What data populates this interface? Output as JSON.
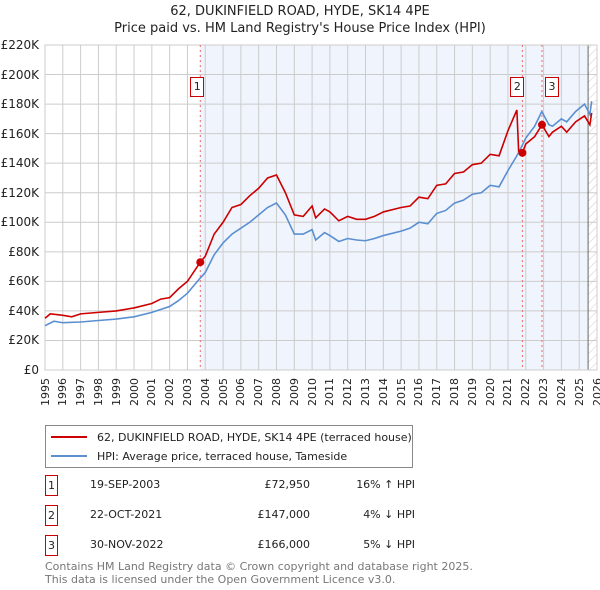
{
  "chart_data": {
    "type": "line",
    "title": "62, DUKINFIELD ROAD, HYDE, SK14 4PE",
    "subtitle": "Price paid vs. HM Land Registry's House Price Index (HPI)",
    "xlim": [
      1995,
      2026
    ],
    "ylim": [
      0,
      220000
    ],
    "x_ticks": [
      "1995",
      "1996",
      "1997",
      "1998",
      "1999",
      "2000",
      "2001",
      "2002",
      "2003",
      "2004",
      "2005",
      "2006",
      "2007",
      "2008",
      "2009",
      "2010",
      "2011",
      "2012",
      "2013",
      "2014",
      "2015",
      "2016",
      "2017",
      "2018",
      "2019",
      "2020",
      "2021",
      "2022",
      "2023",
      "2024",
      "2025",
      "2026"
    ],
    "y_ticks": [
      {
        "v": 0,
        "label": "£0"
      },
      {
        "v": 20000,
        "label": "£20K"
      },
      {
        "v": 40000,
        "label": "£40K"
      },
      {
        "v": 60000,
        "label": "£60K"
      },
      {
        "v": 80000,
        "label": "£80K"
      },
      {
        "v": 100000,
        "label": "£100K"
      },
      {
        "v": 120000,
        "label": "£120K"
      },
      {
        "v": 140000,
        "label": "£140K"
      },
      {
        "v": 160000,
        "label": "£160K"
      },
      {
        "v": 180000,
        "label": "£180K"
      },
      {
        "v": 200000,
        "label": "£200K"
      },
      {
        "v": 220000,
        "label": "£220K"
      }
    ],
    "grid": true,
    "shaded_from": 2003.72,
    "hatched_from": 2025.5,
    "series": [
      {
        "name": "62, DUKINFIELD ROAD, HYDE, SK14 4PE (terraced house)",
        "color": "#cc0000",
        "points": [
          [
            1995,
            35
          ],
          [
            1995.3,
            38
          ],
          [
            1996,
            37
          ],
          [
            1996.5,
            36
          ],
          [
            1997,
            38
          ],
          [
            1998,
            39
          ],
          [
            1999,
            40
          ],
          [
            2000,
            42
          ],
          [
            2001,
            45
          ],
          [
            2001.5,
            48
          ],
          [
            2002,
            49
          ],
          [
            2002.5,
            55
          ],
          [
            2003,
            60
          ],
          [
            2003.72,
            72.95
          ],
          [
            2004,
            77
          ],
          [
            2004.5,
            92
          ],
          [
            2005,
            100
          ],
          [
            2005.5,
            110
          ],
          [
            2006,
            112
          ],
          [
            2006.5,
            118
          ],
          [
            2007,
            123
          ],
          [
            2007.5,
            130
          ],
          [
            2008,
            132
          ],
          [
            2008.5,
            120
          ],
          [
            2009,
            105
          ],
          [
            2009.5,
            104
          ],
          [
            2010,
            111
          ],
          [
            2010.2,
            103
          ],
          [
            2010.7,
            109
          ],
          [
            2011,
            107
          ],
          [
            2011.5,
            101
          ],
          [
            2012,
            104
          ],
          [
            2012.5,
            102
          ],
          [
            2013,
            102
          ],
          [
            2013.5,
            104
          ],
          [
            2014,
            107
          ],
          [
            2015,
            110
          ],
          [
            2015.5,
            111
          ],
          [
            2016,
            117
          ],
          [
            2016.5,
            116
          ],
          [
            2017,
            125
          ],
          [
            2017.5,
            126
          ],
          [
            2018,
            133
          ],
          [
            2018.5,
            134
          ],
          [
            2019,
            139
          ],
          [
            2019.5,
            140
          ],
          [
            2020,
            146
          ],
          [
            2020.5,
            145
          ],
          [
            2021,
            162
          ],
          [
            2021.5,
            176
          ],
          [
            2021.6,
            148
          ],
          [
            2021.81,
            147
          ],
          [
            2022,
            153
          ],
          [
            2022.5,
            158
          ],
          [
            2022.91,
            166
          ],
          [
            2023.3,
            158
          ],
          [
            2023.5,
            161
          ],
          [
            2024,
            165
          ],
          [
            2024.3,
            161
          ],
          [
            2024.8,
            168
          ],
          [
            2025.3,
            172
          ],
          [
            2025.6,
            166
          ],
          [
            2025.7,
            174
          ]
        ]
      },
      {
        "name": "HPI: Average price, terraced house, Tameside",
        "color": "#5b8fd0",
        "points": [
          [
            1995,
            30
          ],
          [
            1995.5,
            33
          ],
          [
            1996,
            32
          ],
          [
            1997,
            32.5
          ],
          [
            1998,
            33.5
          ],
          [
            1999,
            34.5
          ],
          [
            2000,
            36
          ],
          [
            2001,
            39
          ],
          [
            2002,
            43
          ],
          [
            2002.5,
            47
          ],
          [
            2003,
            52
          ],
          [
            2003.7,
            62
          ],
          [
            2004,
            66
          ],
          [
            2004.5,
            78
          ],
          [
            2005,
            86
          ],
          [
            2005.5,
            92
          ],
          [
            2006,
            96
          ],
          [
            2006.5,
            100
          ],
          [
            2007,
            105
          ],
          [
            2007.5,
            110
          ],
          [
            2008,
            113
          ],
          [
            2008.5,
            105
          ],
          [
            2009,
            92
          ],
          [
            2009.5,
            92
          ],
          [
            2010,
            95
          ],
          [
            2010.2,
            88
          ],
          [
            2010.7,
            93
          ],
          [
            2011,
            91
          ],
          [
            2011.5,
            87
          ],
          [
            2012,
            89
          ],
          [
            2012.5,
            88
          ],
          [
            2013,
            87.5
          ],
          [
            2013.5,
            89
          ],
          [
            2014,
            91
          ],
          [
            2015,
            94
          ],
          [
            2015.5,
            96
          ],
          [
            2016,
            100
          ],
          [
            2016.5,
            99
          ],
          [
            2017,
            106
          ],
          [
            2017.5,
            108
          ],
          [
            2018,
            113
          ],
          [
            2018.5,
            115
          ],
          [
            2019,
            119
          ],
          [
            2019.5,
            120
          ],
          [
            2020,
            125
          ],
          [
            2020.5,
            124
          ],
          [
            2021,
            135
          ],
          [
            2021.5,
            145
          ],
          [
            2021.8,
            152
          ],
          [
            2022,
            157
          ],
          [
            2022.5,
            165
          ],
          [
            2022.9,
            175
          ],
          [
            2023.3,
            166
          ],
          [
            2023.5,
            165
          ],
          [
            2024,
            170
          ],
          [
            2024.3,
            168
          ],
          [
            2024.8,
            175
          ],
          [
            2025.3,
            180
          ],
          [
            2025.6,
            173
          ],
          [
            2025.7,
            182
          ]
        ]
      }
    ],
    "y_units": "£K",
    "sales": [
      {
        "id": "1",
        "x": 2003.72,
        "value": 72950
      },
      {
        "id": "2",
        "x": 2021.81,
        "value": 147000
      },
      {
        "id": "3",
        "x": 2022.91,
        "value": 166000
      }
    ]
  },
  "table": [
    {
      "id": "1",
      "date": "19-SEP-2003",
      "price": "£72,950",
      "hpi": "16% ↑ HPI"
    },
    {
      "id": "2",
      "date": "22-OCT-2021",
      "price": "£147,000",
      "hpi": "4% ↓ HPI"
    },
    {
      "id": "3",
      "date": "30-NOV-2022",
      "price": "£166,000",
      "hpi": "5% ↓ HPI"
    }
  ],
  "footer": [
    "Contains HM Land Registry data © Crown copyright and database right 2025.",
    "This data is licensed under the Open Government Licence v3.0."
  ]
}
